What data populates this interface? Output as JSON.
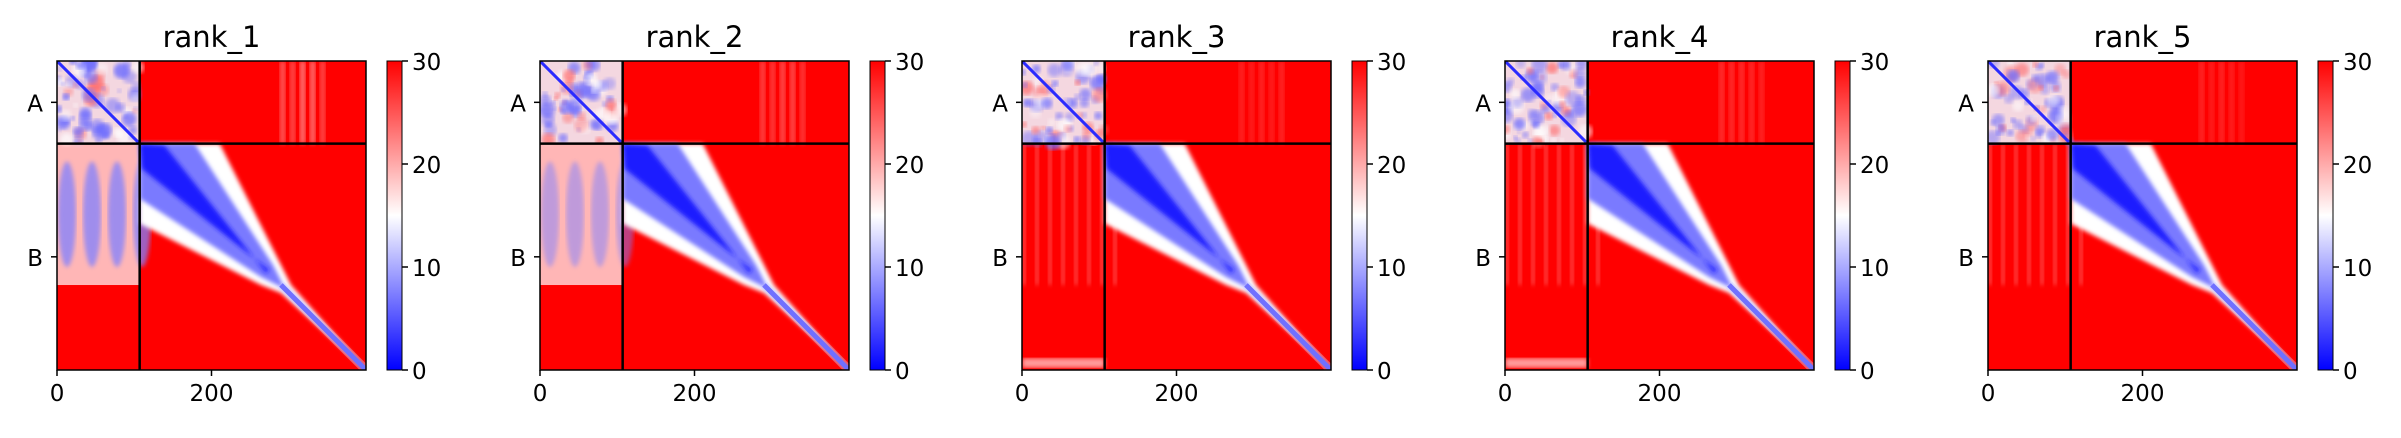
{
  "figure": {
    "background": "#ffffff",
    "colormap": {
      "name": "bwr",
      "low": "#0000ff",
      "mid": "#ffffff",
      "high": "#ff0000"
    }
  },
  "chart_data": [
    {
      "type": "heatmap",
      "title": "rank_1",
      "xticks": [
        0,
        200
      ],
      "yticks": [
        "A",
        "B"
      ],
      "x_range": [
        0,
        400
      ],
      "chain_boundary": 107,
      "colorbar": {
        "range": [
          0,
          30
        ],
        "ticks": [
          0,
          10,
          20,
          30
        ]
      },
      "features": {
        "a_intra_strength": 0.9,
        "ba_blue": 0.75,
        "ab_stripe": 0.55,
        "red_bottom_left": 0,
        "kink_at": 290
      }
    },
    {
      "type": "heatmap",
      "title": "rank_2",
      "xticks": [
        0,
        200
      ],
      "yticks": [
        "A",
        "B"
      ],
      "x_range": [
        0,
        400
      ],
      "chain_boundary": 107,
      "colorbar": {
        "range": [
          0,
          30
        ],
        "ticks": [
          0,
          10,
          20,
          30
        ]
      },
      "features": {
        "a_intra_strength": 0.75,
        "ba_blue": 0.5,
        "ab_stripe": 0.35,
        "red_bottom_left": 0,
        "kink_at": 290
      }
    },
    {
      "type": "heatmap",
      "title": "rank_3",
      "xticks": [
        0,
        200
      ],
      "yticks": [
        "A",
        "B"
      ],
      "x_range": [
        0,
        400
      ],
      "chain_boundary": 107,
      "colorbar": {
        "range": [
          0,
          30
        ],
        "ticks": [
          0,
          10,
          20,
          30
        ]
      },
      "features": {
        "a_intra_strength": 0.85,
        "ba_blue": 0.18,
        "ab_stripe": 0.2,
        "red_bottom_left": 1,
        "kink_at": 290
      }
    },
    {
      "type": "heatmap",
      "title": "rank_4",
      "xticks": [
        0,
        200
      ],
      "yticks": [
        "A",
        "B"
      ],
      "x_range": [
        0,
        400
      ],
      "chain_boundary": 107,
      "colorbar": {
        "range": [
          0,
          30
        ],
        "ticks": [
          0,
          10,
          20,
          30
        ]
      },
      "features": {
        "a_intra_strength": 0.8,
        "ba_blue": 0.12,
        "ab_stripe": 0.2,
        "red_bottom_left": 1,
        "kink_at": 290
      }
    },
    {
      "type": "heatmap",
      "title": "rank_5",
      "xticks": [
        0,
        200
      ],
      "yticks": [
        "A",
        "B"
      ],
      "x_range": [
        0,
        400
      ],
      "chain_boundary": 107,
      "colorbar": {
        "range": [
          0,
          30
        ],
        "ticks": [
          0,
          10,
          20,
          30
        ]
      },
      "features": {
        "a_intra_strength": 0.8,
        "ba_blue": 0.1,
        "ab_stripe": 0.2,
        "red_bottom_left": 0,
        "kink_at": 290
      }
    }
  ]
}
